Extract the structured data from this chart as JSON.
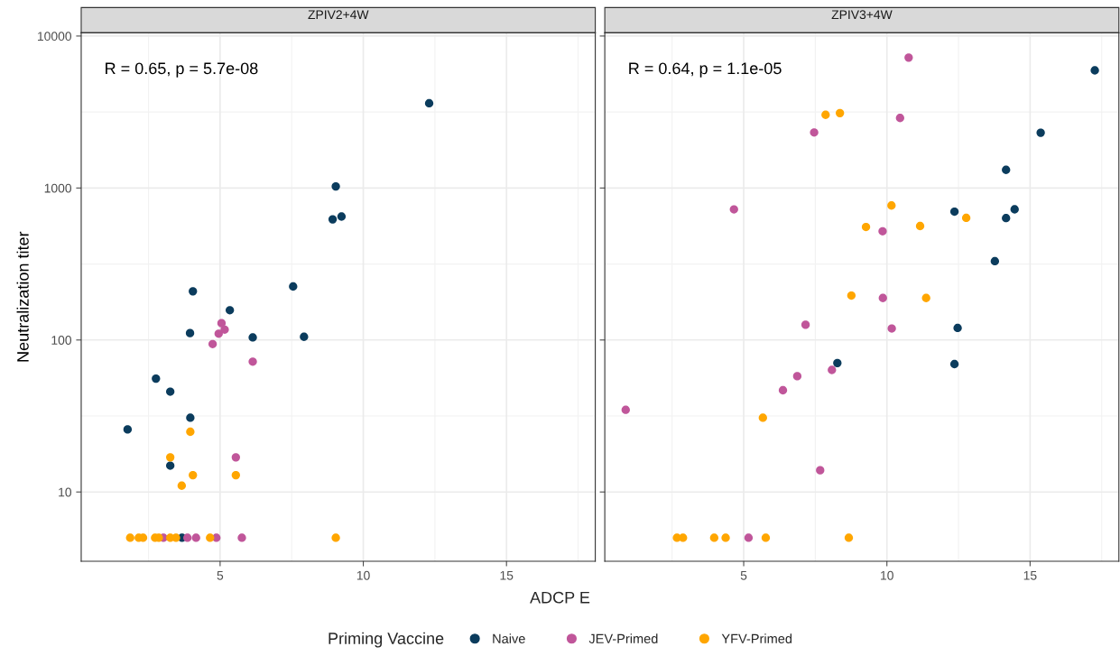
{
  "chart_data": [
    {
      "type": "scatter",
      "title": "ZPIV2+4W",
      "xlabel": "ADCP E",
      "ylabel": "Neutralization titer",
      "legend_title": "Priming Vaccine",
      "legend": "bottom",
      "log": "y",
      "grid": true,
      "marker": "circle",
      "xlim": [
        0.15,
        18.1
      ],
      "xticks": [
        5,
        10,
        15
      ],
      "ylim": [
        3.5,
        10500
      ],
      "yticks": [
        10,
        100,
        1000,
        10000
      ],
      "annotations": [
        "R = 0.65, p = 5.7e-08"
      ],
      "series": [
        {
          "name": "Naive",
          "color": "#0b3c5d",
          "x": [
            9.04,
            8.93,
            9.24,
            4.05,
            7.55,
            5.34,
            3.95,
            6.14,
            7.93,
            2.76,
            3.26,
            12.3,
            1.77,
            3.96,
            3.26,
            3.67
          ],
          "values": [
            1024,
            622,
            649,
            209,
            225,
            157,
            111,
            104,
            105,
            55.7,
            45.7,
            3610,
            25.8,
            30.8,
            14.9,
            5
          ]
        },
        {
          "name": "JEV-Primed",
          "color": "#c0569a",
          "x": [
            5.05,
            5.16,
            4.95,
            4.74,
            6.14,
            5.55,
            3.02,
            3.86,
            4.16,
            4.87,
            5.76
          ],
          "values": [
            129,
            117,
            110,
            94,
            72,
            16.9,
            5,
            5,
            5,
            5,
            5
          ]
        },
        {
          "name": "YFV-Primed",
          "color": "#ffa600",
          "x": [
            3.96,
            3.26,
            4.05,
            3.66,
            5.55,
            1.86,
            2.16,
            2.31,
            2.73,
            2.86,
            3.26,
            3.46,
            4.65,
            9.04
          ],
          "values": [
            24.9,
            16.9,
            12.9,
            11.0,
            12.9,
            5,
            5,
            5,
            5,
            5,
            5,
            5,
            5,
            5
          ]
        }
      ]
    },
    {
      "type": "scatter",
      "title": "ZPIV3+4W",
      "log": "y",
      "grid": true,
      "marker": "circle",
      "tick_labels": "x",
      "xlim": [
        0.15,
        18.1
      ],
      "xticks": [
        5,
        10,
        15
      ],
      "ylim": [
        3.5,
        10500
      ],
      "yticks": [
        10,
        100,
        1000,
        10000
      ],
      "annotations": [
        "R = 0.64, p = 1.1e-05"
      ],
      "series": [
        {
          "name": "Naive",
          "color": "#0b3c5d",
          "x": [
            17.26,
            15.37,
            14.16,
            12.36,
            14.16,
            14.46,
            13.77,
            12.47,
            8.27,
            12.36
          ],
          "values": [
            5940,
            2310,
            1316,
            699,
            634,
            724,
            330,
            120,
            70.5,
            69.4
          ]
        },
        {
          "name": "JEV-Primed",
          "color": "#c0569a",
          "x": [
            10.76,
            10.46,
            7.46,
            4.66,
            9.85,
            9.86,
            10.17,
            7.16,
            8.08,
            6.87,
            6.37,
            0.88,
            7.67,
            5.17
          ],
          "values": [
            7210,
            2890,
            2320,
            723,
            519,
            189,
            119,
            126,
            63.5,
            57.8,
            46.7,
            34.7,
            13.9,
            5
          ]
        },
        {
          "name": "YFV-Primed",
          "color": "#ffa600",
          "x": [
            7.86,
            8.36,
            10.16,
            9.27,
            11.16,
            12.77,
            8.76,
            11.37,
            5.67,
            2.67,
            2.88,
            3.97,
            4.37,
            5.77,
            8.67
          ],
          "values": [
            3030,
            3110,
            767,
            554,
            562,
            636,
            196,
            189,
            30.8,
            5,
            5,
            5,
            5,
            5,
            5
          ]
        }
      ]
    }
  ]
}
